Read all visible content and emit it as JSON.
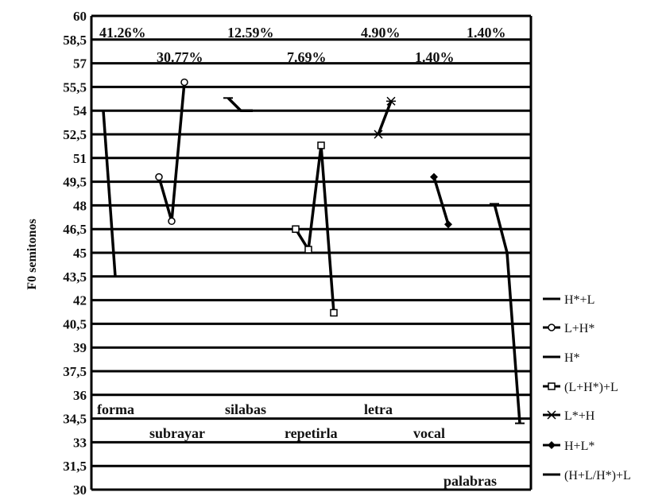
{
  "chart_data": {
    "type": "line",
    "title": "",
    "xlabel": "",
    "ylabel": "F0 semitonos",
    "ylim": [
      30,
      60
    ],
    "yticks": [
      "30",
      "31,5",
      "33",
      "34,5",
      "36",
      "37,5",
      "39",
      "40,5",
      "42",
      "43,5",
      "45",
      "46,5",
      "48",
      "49,5",
      "51",
      "52,5",
      "54",
      "55,5",
      "57",
      "58,5",
      "60"
    ],
    "grid": true,
    "legend_position": "right",
    "percentages": [
      {
        "text": "41.26%",
        "row": "top"
      },
      {
        "text": "30.77%",
        "row": "second"
      },
      {
        "text": "12.59%",
        "row": "top"
      },
      {
        "text": "7.69%",
        "row": "second"
      },
      {
        "text": "4.90%",
        "row": "top"
      },
      {
        "text": "1.40%",
        "row": "second"
      },
      {
        "text": "1.40%",
        "row": "top"
      }
    ],
    "words": [
      {
        "text": "forma",
        "row": "upper"
      },
      {
        "text": "subrayar",
        "row": "lower"
      },
      {
        "text": "silabas",
        "row": "upper"
      },
      {
        "text": "repetirla",
        "row": "lower"
      },
      {
        "text": "letra",
        "row": "upper"
      },
      {
        "text": "vocal",
        "row": "lower"
      },
      {
        "text": "palabras",
        "row": "bottom"
      }
    ],
    "series": [
      {
        "name": "H*+L",
        "marker": "dash",
        "values": [
          54.0,
          43.5
        ]
      },
      {
        "name": "L+H*",
        "marker": "circle",
        "values": [
          49.8,
          47.0,
          55.8
        ]
      },
      {
        "name": "H*",
        "marker": "dash",
        "values": [
          54.8,
          54.0,
          54.0
        ]
      },
      {
        "name": "(L+H*)+L",
        "marker": "square",
        "values": [
          46.5,
          45.2,
          51.8,
          41.2
        ]
      },
      {
        "name": "L*+H",
        "marker": "star",
        "values": [
          52.5,
          54.6
        ]
      },
      {
        "name": "H+L*",
        "marker": "diamond",
        "values": [
          49.8,
          46.8
        ]
      },
      {
        "name": "(H+L/H*)+L",
        "marker": "dash",
        "values": [
          48.1,
          45.0,
          34.2
        ]
      }
    ]
  },
  "legend": {
    "items": [
      "H*+L",
      "L+H*",
      "H*",
      "(L+H*)+L",
      "L*+H",
      "H+L*",
      "(H+L/H*)+L"
    ]
  }
}
